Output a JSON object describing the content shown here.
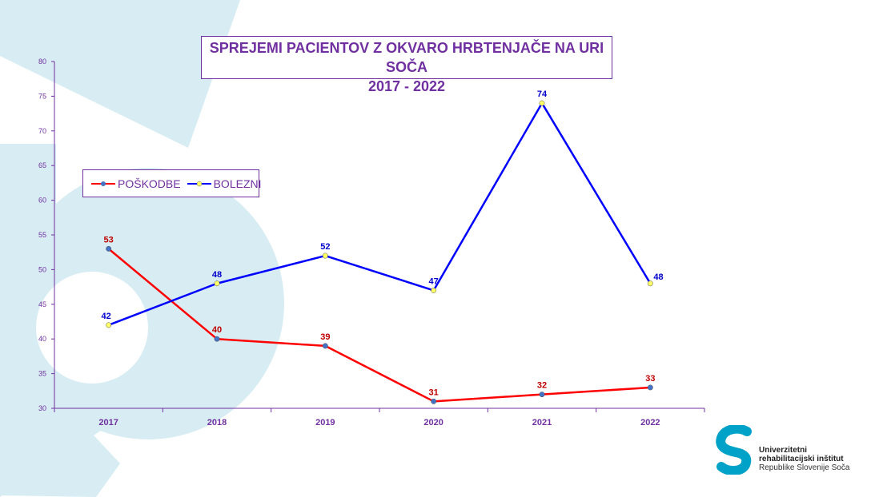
{
  "chart_data": {
    "type": "line",
    "title_line1": "SPREJEMI PACIENTOV Z OKVARO HRBTENJAČE NA URI SOČA",
    "title_line2": "2017 - 2022",
    "categories": [
      "2017",
      "2018",
      "2019",
      "2020",
      "2021",
      "2022"
    ],
    "series": [
      {
        "name": "POŠKODBE",
        "values": [
          53,
          40,
          39,
          31,
          32,
          33
        ],
        "color": "#ff0000",
        "marker_color": "#4472c4",
        "label_color": "#c00000"
      },
      {
        "name": "BOLEZNI",
        "values": [
          42,
          48,
          52,
          47,
          74,
          48
        ],
        "color": "#0000ff",
        "marker_color": "#ffff66",
        "label_color": "#0000cc"
      }
    ],
    "ylim": [
      30,
      80
    ],
    "yticks": [
      "30",
      "35",
      "40",
      "45",
      "50",
      "55",
      "60",
      "65",
      "70",
      "75",
      "80"
    ],
    "legend_position": "left",
    "axis_color": "#7030a0"
  },
  "logo": {
    "line1": "Univerzitetni",
    "line2": "rehabilitacijski inštitut",
    "line3": "Republike Slovenije Soča",
    "color": "#00a3c7"
  }
}
